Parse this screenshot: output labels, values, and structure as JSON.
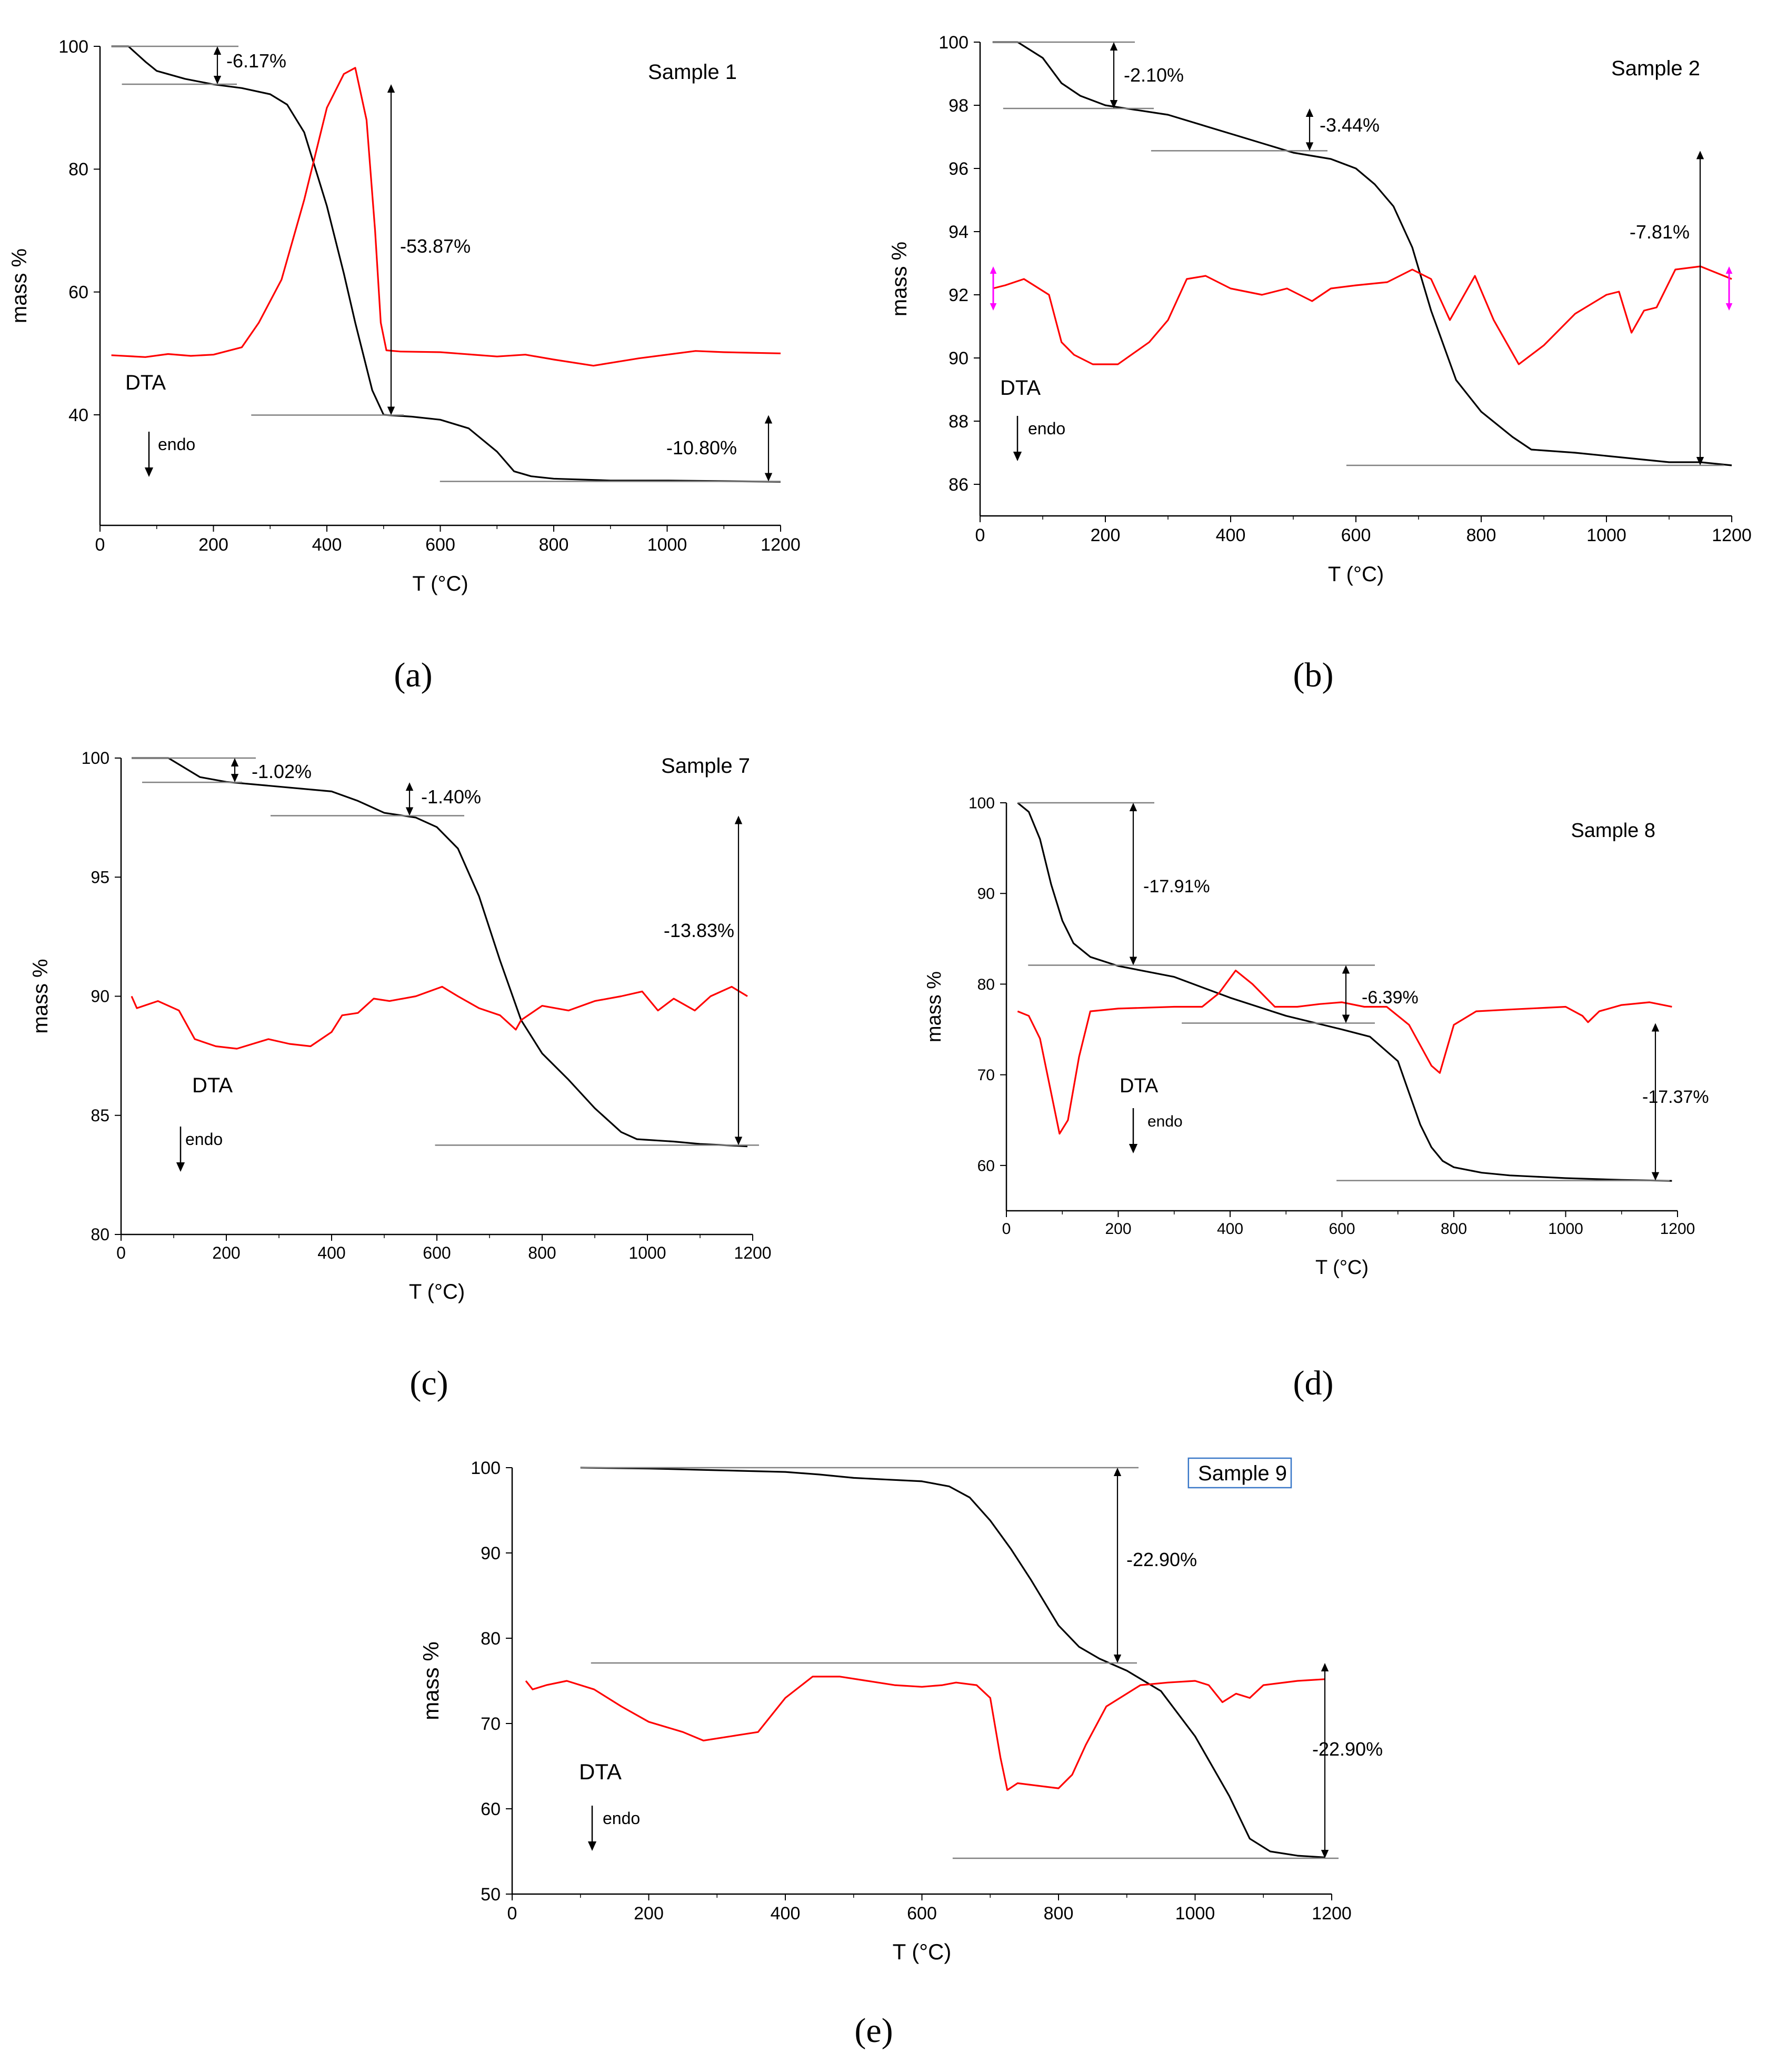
{
  "figure": {
    "panel_labels": [
      "(a)",
      "(b)",
      "(c)",
      "(d)",
      "(e)"
    ]
  },
  "colors": {
    "tg": "#000000",
    "dta": "#ff0000",
    "guide": "#808080",
    "highlight": "#ff00ff",
    "frame": "#3a78c8"
  },
  "chart_data": [
    {
      "type": "line",
      "title": "Sample 1",
      "xlabel": "T (°C)",
      "ylabel": "mass %",
      "xlim": [
        0,
        1200
      ],
      "ylim": [
        22,
        100
      ],
      "x_ticks": [
        0,
        200,
        400,
        600,
        800,
        1000,
        1200
      ],
      "y_ticks": [
        40,
        60,
        80,
        100
      ],
      "series": [
        {
          "name": "TG",
          "color": "#000000",
          "x": [
            20,
            50,
            80,
            100,
            150,
            200,
            250,
            300,
            330,
            360,
            400,
            430,
            450,
            480,
            500,
            550,
            600,
            650,
            700,
            730,
            760,
            800,
            900,
            1000,
            1100,
            1200
          ],
          "y": [
            100,
            100,
            97.5,
            96,
            94.7,
            93.8,
            93.2,
            92.2,
            90.5,
            86,
            74,
            63,
            55,
            44,
            40,
            39.7,
            39.2,
            37.8,
            34,
            30.8,
            30,
            29.6,
            29.3,
            29.3,
            29.2,
            29.1
          ]
        },
        {
          "name": "DTA",
          "color": "#ff0000",
          "x": [
            20,
            80,
            120,
            160,
            200,
            250,
            280,
            320,
            360,
            400,
            430,
            450,
            470,
            485,
            495,
            505,
            530,
            600,
            700,
            750,
            800,
            870,
            950,
            1050,
            1100,
            1200
          ],
          "y": [
            49.7,
            49.4,
            49.9,
            49.6,
            49.8,
            51,
            55,
            62,
            75,
            90,
            95.5,
            96.5,
            88,
            70,
            55,
            50.5,
            50.3,
            50.2,
            49.5,
            49.8,
            49,
            48,
            49.2,
            50.4,
            50.2,
            50
          ]
        }
      ],
      "annotations": [
        {
          "text": "-6.17%",
          "from": 100,
          "to": 93.83
        },
        {
          "text": "-53.87%",
          "from": 93.83,
          "to": 39.96
        },
        {
          "text": "-10.80%",
          "from": 39.96,
          "to": 29.16
        }
      ],
      "dta_label": "DTA",
      "endo_label": "endo"
    },
    {
      "type": "line",
      "title": "Sample 2",
      "xlabel": "T (°C)",
      "ylabel": "mass %",
      "xlim": [
        0,
        1200
      ],
      "ylim": [
        85,
        100
      ],
      "x_ticks": [
        0,
        200,
        400,
        600,
        800,
        1000,
        1200
      ],
      "y_ticks": [
        86,
        88,
        90,
        92,
        94,
        96,
        98,
        100
      ],
      "series": [
        {
          "name": "TG",
          "color": "#000000",
          "x": [
            20,
            60,
            100,
            130,
            160,
            200,
            300,
            400,
            500,
            560,
            600,
            630,
            660,
            690,
            720,
            760,
            800,
            850,
            880,
            950,
            1050,
            1100,
            1150,
            1200
          ],
          "y": [
            100,
            100,
            99.5,
            98.7,
            98.3,
            98.0,
            97.7,
            97.1,
            96.5,
            96.3,
            96.0,
            95.5,
            94.8,
            93.5,
            91.5,
            89.3,
            88.3,
            87.5,
            87.1,
            87.0,
            86.8,
            86.7,
            86.7,
            86.6
          ]
        },
        {
          "name": "DTA",
          "color": "#ff0000",
          "x": [
            20,
            40,
            70,
            110,
            130,
            150,
            180,
            220,
            270,
            300,
            330,
            360,
            400,
            450,
            490,
            530,
            560,
            600,
            650,
            690,
            720,
            750,
            790,
            820,
            860,
            900,
            950,
            1000,
            1020,
            1040,
            1060,
            1080,
            1110,
            1150,
            1200
          ],
          "y": [
            92.2,
            92.3,
            92.5,
            92.0,
            90.5,
            90.1,
            89.8,
            89.8,
            90.5,
            91.2,
            92.5,
            92.6,
            92.2,
            92.0,
            92.2,
            91.8,
            92.2,
            92.3,
            92.4,
            92.8,
            92.5,
            91.2,
            92.6,
            91.2,
            89.8,
            90.4,
            91.4,
            92.0,
            92.1,
            90.8,
            91.5,
            91.6,
            92.8,
            92.9,
            92.5
          ]
        }
      ],
      "annotations": [
        {
          "text": "-2.10%",
          "from": 100,
          "to": 97.9
        },
        {
          "text": "-3.44%",
          "from": 97.9,
          "to": 96.56
        },
        {
          "text": "-7.81%",
          "from": 96.56,
          "to": 86.6
        }
      ],
      "dta_label": "DTA",
      "endo_label": "endo"
    },
    {
      "type": "line",
      "title": "Sample 7",
      "xlabel": "T (°C)",
      "ylabel": "mass %",
      "xlim": [
        0,
        1200
      ],
      "ylim": [
        80,
        100
      ],
      "x_ticks": [
        0,
        200,
        400,
        600,
        800,
        1000,
        1200
      ],
      "y_ticks": [
        80,
        85,
        90,
        95,
        100
      ],
      "series": [
        {
          "name": "TG",
          "color": "#000000",
          "x": [
            20,
            90,
            120,
            150,
            200,
            300,
            400,
            450,
            500,
            560,
            600,
            640,
            680,
            720,
            760,
            800,
            850,
            900,
            950,
            980,
            1050,
            1100,
            1190
          ],
          "y": [
            100,
            100,
            99.6,
            99.2,
            99.0,
            98.8,
            98.6,
            98.2,
            97.7,
            97.5,
            97.1,
            96.2,
            94.2,
            91.5,
            89.0,
            87.6,
            86.5,
            85.3,
            84.3,
            84.0,
            83.9,
            83.8,
            83.7
          ]
        },
        {
          "name": "DTA",
          "color": "#ff0000",
          "x": [
            20,
            30,
            70,
            110,
            140,
            180,
            220,
            280,
            320,
            360,
            400,
            420,
            450,
            480,
            510,
            560,
            610,
            640,
            680,
            720,
            750,
            760,
            800,
            850,
            900,
            950,
            990,
            1020,
            1050,
            1090,
            1120,
            1160,
            1190
          ],
          "y": [
            90.0,
            89.5,
            89.8,
            89.4,
            88.2,
            87.9,
            87.8,
            88.2,
            88.0,
            87.9,
            88.5,
            89.2,
            89.3,
            89.9,
            89.8,
            90.0,
            90.4,
            90.0,
            89.5,
            89.2,
            88.6,
            89.0,
            89.6,
            89.4,
            89.8,
            90.0,
            90.2,
            89.4,
            89.9,
            89.4,
            90.0,
            90.4,
            90.0
          ]
        }
      ],
      "annotations": [
        {
          "text": "-1.02%",
          "from": 100,
          "to": 98.98
        },
        {
          "text": "-1.40%",
          "from": 98.98,
          "to": 97.58
        },
        {
          "text": "-13.83%",
          "from": 97.58,
          "to": 83.75
        }
      ],
      "dta_label": "DTA",
      "endo_label": "endo"
    },
    {
      "type": "line",
      "title": "Sample 8",
      "xlabel": "T (°C)",
      "ylabel": "mass %",
      "xlim": [
        0,
        1200
      ],
      "ylim": [
        55,
        100
      ],
      "x_ticks": [
        0,
        200,
        400,
        600,
        800,
        1000,
        1200
      ],
      "y_ticks": [
        60,
        70,
        80,
        90,
        100
      ],
      "series": [
        {
          "name": "TG",
          "color": "#000000",
          "x": [
            20,
            40,
            60,
            80,
            100,
            120,
            150,
            200,
            300,
            400,
            500,
            600,
            650,
            700,
            720,
            740,
            760,
            780,
            800,
            850,
            900,
            1000,
            1100,
            1190
          ],
          "y": [
            100,
            99,
            96,
            91,
            87,
            84.5,
            83,
            82,
            80.8,
            78.5,
            76.5,
            75.0,
            74.2,
            71.5,
            68,
            64.5,
            62,
            60.5,
            59.8,
            59.2,
            58.9,
            58.6,
            58.4,
            58.3
          ]
        },
        {
          "name": "DTA",
          "color": "#ff0000",
          "x": [
            20,
            40,
            60,
            80,
            95,
            110,
            130,
            150,
            200,
            300,
            350,
            380,
            410,
            440,
            480,
            520,
            560,
            600,
            640,
            680,
            720,
            760,
            775,
            800,
            840,
            900,
            1000,
            1030,
            1040,
            1060,
            1100,
            1150,
            1190
          ],
          "y": [
            77,
            76.5,
            74,
            68,
            63.5,
            65,
            72,
            77,
            77.3,
            77.5,
            77.5,
            79,
            81.5,
            80,
            77.5,
            77.5,
            77.8,
            78,
            77.5,
            77.5,
            75.5,
            71,
            70.2,
            75.5,
            77,
            77.2,
            77.5,
            76.5,
            75.8,
            77,
            77.7,
            78,
            77.5
          ]
        }
      ],
      "annotations": [
        {
          "text": "-17.91%",
          "from": 100,
          "to": 82.09
        },
        {
          "text": "-6.39%",
          "from": 82.09,
          "to": 75.7
        },
        {
          "text": "-17.37%",
          "from": 75.7,
          "to": 58.33
        }
      ],
      "dta_label": "DTA",
      "endo_label": "endo"
    },
    {
      "type": "line",
      "title": "Sample 9",
      "xlabel": "T (°C)",
      "ylabel": "mass %",
      "xlim": [
        0,
        1200
      ],
      "ylim": [
        50,
        100
      ],
      "x_ticks": [
        0,
        200,
        400,
        600,
        800,
        1000,
        1200
      ],
      "y_ticks": [
        50,
        60,
        70,
        80,
        90,
        100
      ],
      "series": [
        {
          "name": "TG",
          "color": "#000000",
          "x": [
            100,
            200,
            300,
            400,
            450,
            500,
            550,
            600,
            640,
            670,
            700,
            730,
            760,
            800,
            830,
            860,
            900,
            950,
            1000,
            1050,
            1080,
            1110,
            1150,
            1190
          ],
          "y": [
            100,
            99.9,
            99.7,
            99.5,
            99.2,
            98.8,
            98.6,
            98.4,
            97.8,
            96.5,
            93.8,
            90.5,
            86.8,
            81.5,
            79,
            77.6,
            76.2,
            73.8,
            68.5,
            61.5,
            56.5,
            55.0,
            54.5,
            54.3
          ]
        },
        {
          "name": "DTA",
          "color": "#ff0000",
          "x": [
            20,
            30,
            50,
            80,
            120,
            160,
            200,
            250,
            280,
            320,
            360,
            400,
            440,
            480,
            520,
            560,
            600,
            630,
            650,
            680,
            700,
            715,
            725,
            740,
            800,
            820,
            840,
            870,
            920,
            960,
            1000,
            1020,
            1040,
            1060,
            1080,
            1100,
            1150,
            1190
          ],
          "y": [
            75,
            74,
            74.5,
            75,
            74,
            72,
            70.2,
            69,
            68,
            68.5,
            69,
            73,
            75.5,
            75.5,
            75,
            74.5,
            74.3,
            74.5,
            74.8,
            74.5,
            73,
            66,
            62.2,
            63,
            62.4,
            64,
            67.5,
            72,
            74.5,
            74.8,
            75,
            74.5,
            72.5,
            73.5,
            73,
            74.5,
            75,
            75.2
          ]
        }
      ],
      "annotations": [
        {
          "text": "-22.90%",
          "from": 100,
          "to": 77.1
        },
        {
          "text": "-22.90%",
          "from": 77.1,
          "to": 54.2
        }
      ],
      "dta_label": "DTA",
      "endo_label": "endo"
    }
  ]
}
